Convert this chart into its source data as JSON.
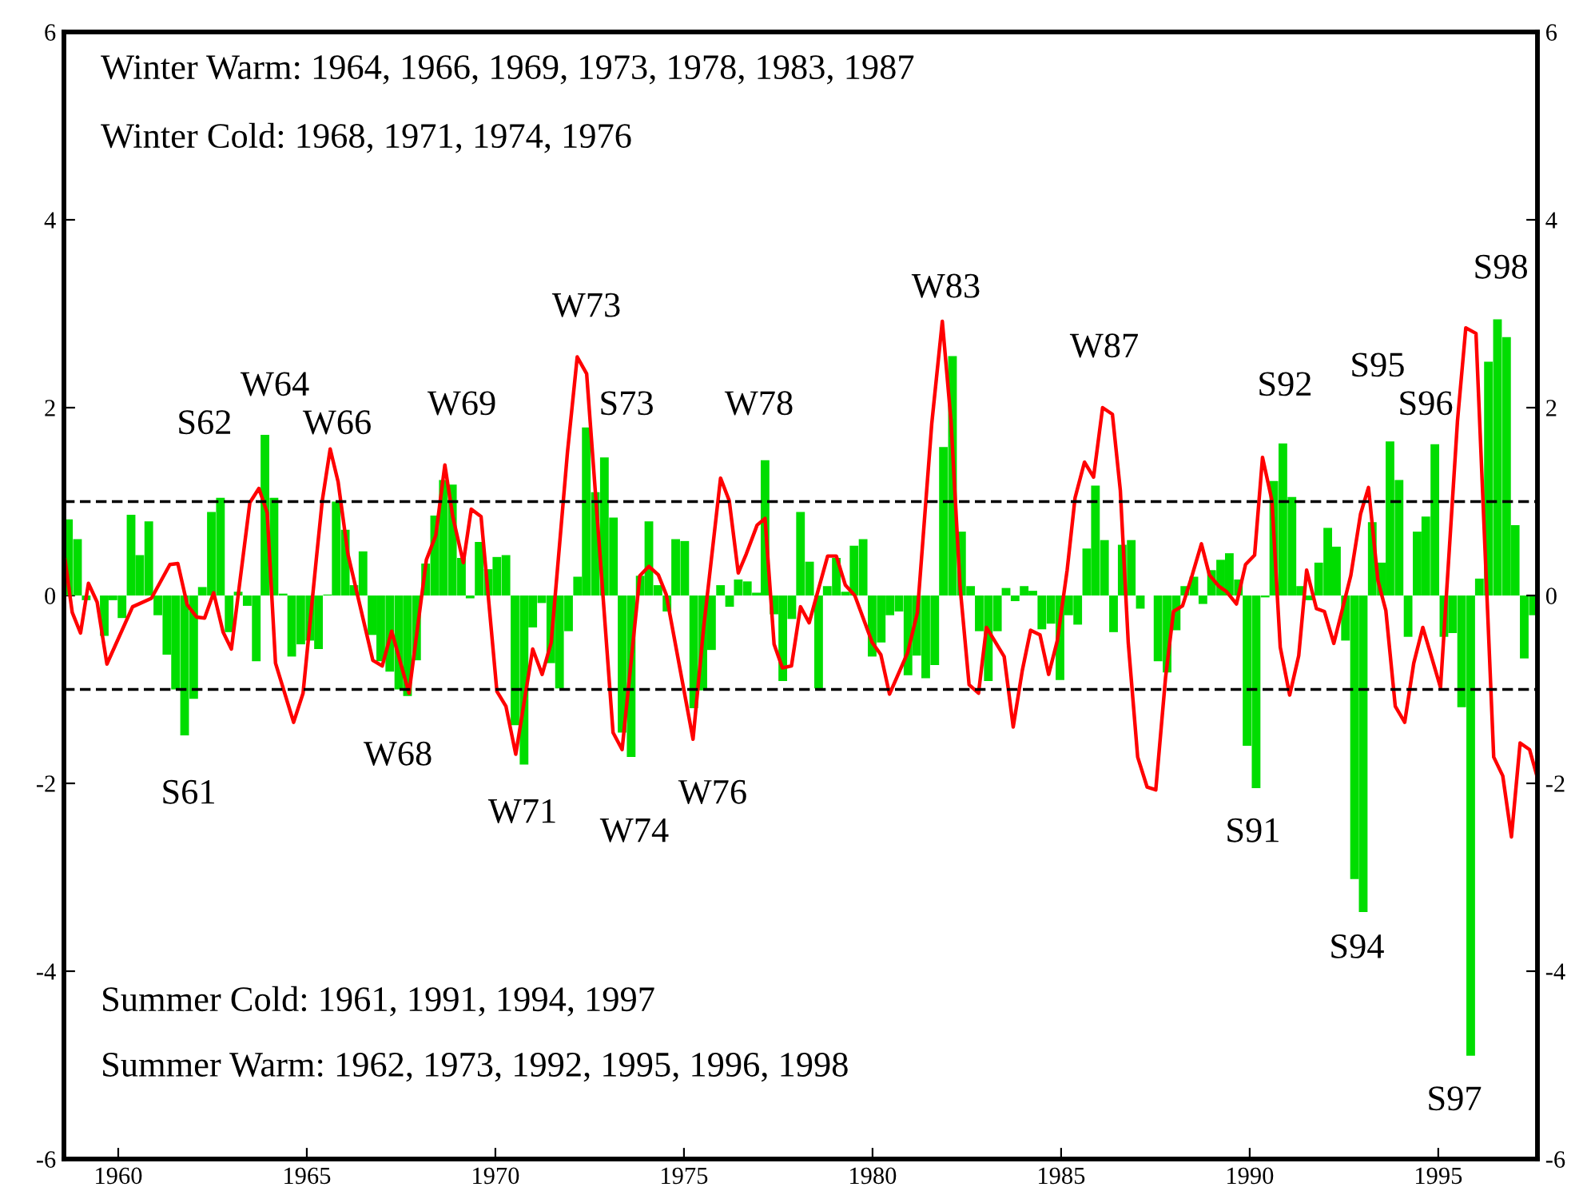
{
  "chart_data": {
    "type": "bar",
    "xlim": [
      1958.56,
      1997.63
    ],
    "xticks": [
      1960,
      1965,
      1970,
      1975,
      1980,
      1985,
      1990,
      1995
    ],
    "ylim": [
      -6,
      6
    ],
    "yticks": [
      -6,
      -4,
      -2,
      0,
      2,
      4,
      6
    ],
    "y2lim": [
      -6,
      6
    ],
    "y2ticks": [
      -6,
      -4,
      -2,
      0,
      2,
      4,
      6
    ],
    "grid": false,
    "series": [
      {
        "color": "#00dd00",
        "x": [
          1958.68,
          1958.92,
          1959.15,
          1959.39,
          1959.63,
          1959.86,
          1960.1,
          1960.34,
          1960.57,
          1960.81,
          1961.05,
          1961.29,
          1961.52,
          1961.76,
          1962.0,
          1962.23,
          1962.47,
          1962.71,
          1962.94,
          1963.18,
          1963.42,
          1963.66,
          1963.89,
          1964.13,
          1964.37,
          1964.6,
          1964.84,
          1965.08,
          1965.31,
          1965.55,
          1965.78,
          1966.02,
          1966.25,
          1966.49,
          1966.73,
          1966.96,
          1967.2,
          1967.44,
          1967.67,
          1967.91,
          1968.15,
          1968.39,
          1968.62,
          1968.86,
          1969.1,
          1969.33,
          1969.57,
          1969.81,
          1970.04,
          1970.28,
          1970.52,
          1970.76,
          1970.99,
          1971.23,
          1971.47,
          1971.7,
          1971.94,
          1972.18,
          1972.41,
          1972.65,
          1972.89,
          1973.13,
          1973.36,
          1973.6,
          1973.84,
          1974.07,
          1974.31,
          1974.55,
          1974.78,
          1975.02,
          1975.26,
          1975.5,
          1975.73,
          1975.97,
          1976.21,
          1976.44,
          1976.68,
          1976.92,
          1977.15,
          1977.39,
          1977.62,
          1977.86,
          1978.09,
          1978.33,
          1978.57,
          1978.8,
          1979.04,
          1979.28,
          1979.51,
          1979.75,
          1979.99,
          1980.23,
          1980.46,
          1980.7,
          1980.94,
          1981.17,
          1981.41,
          1981.65,
          1981.88,
          1982.12,
          1982.36,
          1982.6,
          1982.83,
          1983.07,
          1983.31,
          1983.54,
          1983.78,
          1984.02,
          1984.25,
          1984.49,
          1984.73,
          1984.97,
          1985.2,
          1985.44,
          1985.68,
          1985.91,
          1986.15,
          1986.39,
          1986.62,
          1986.86,
          1987.1,
          1987.34,
          1987.57,
          1987.81,
          1988.05,
          1988.28,
          1988.52,
          1988.76,
          1988.99,
          1989.23,
          1989.46,
          1989.7,
          1989.93,
          1990.17,
          1990.41,
          1990.64,
          1990.88,
          1991.12,
          1991.35,
          1991.59,
          1991.83,
          1992.07,
          1992.3,
          1992.54,
          1992.78,
          1993.01,
          1993.25,
          1993.49,
          1993.72,
          1993.96,
          1994.2,
          1994.44,
          1994.67,
          1994.91,
          1995.15,
          1995.38,
          1995.62,
          1995.86,
          1996.09,
          1996.33,
          1996.57,
          1996.81,
          1997.04,
          1997.28,
          1997.52
        ],
        "values": [
          0.81,
          0.6,
          -0.05,
          0,
          -0.43,
          -0.05,
          -0.24,
          0.86,
          0.43,
          0.79,
          -0.21,
          -0.63,
          -1.0,
          -1.49,
          -1.1,
          0.09,
          0.89,
          1.04,
          -0.39,
          0.04,
          -0.11,
          -0.7,
          1.71,
          1.04,
          0.02,
          -0.65,
          -0.52,
          -0.48,
          -0.57,
          0.01,
          1.0,
          0.7,
          0.11,
          0.47,
          -0.42,
          -0.7,
          -0.81,
          -1.0,
          -1.07,
          -0.69,
          0.34,
          0.85,
          1.23,
          1.18,
          0.4,
          -0.03,
          0.57,
          0.28,
          0.41,
          0.43,
          -1.38,
          -1.8,
          -0.34,
          -0.08,
          -0.72,
          -0.99,
          -0.38,
          0.2,
          1.79,
          1.1,
          1.47,
          0.83,
          -1.46,
          -1.72,
          0.21,
          0.79,
          0.11,
          -0.17,
          0.6,
          0.58,
          -1.2,
          -1.01,
          -0.58,
          0.11,
          -0.12,
          0.17,
          0.15,
          0.03,
          1.44,
          -0.2,
          -0.91,
          -0.25,
          0.89,
          0.36,
          -0.99,
          0.1,
          0.4,
          0.04,
          0.53,
          0.6,
          -0.65,
          -0.5,
          -0.21,
          -0.17,
          -0.85,
          -0.64,
          -0.88,
          -0.74,
          1.58,
          2.55,
          0.68,
          0.1,
          -0.38,
          -0.91,
          -0.38,
          0.08,
          -0.06,
          0.1,
          0.05,
          -0.36,
          -0.3,
          -0.9,
          -0.21,
          -0.31,
          0.5,
          1.17,
          0.59,
          -0.39,
          0.54,
          0.59,
          -0.14,
          0,
          -0.7,
          -0.82,
          -0.37,
          0.1,
          0.2,
          -0.09,
          0.27,
          0.38,
          0.45,
          0.17,
          -1.6,
          -2.05,
          -0.02,
          1.22,
          1.62,
          1.05,
          0.1,
          -0.05,
          0.35,
          0.72,
          0.52,
          -0.48,
          -3.02,
          -3.37,
          0.78,
          0.35,
          1.64,
          1.23,
          -0.44,
          0.68,
          0.84,
          1.61,
          -0.44,
          -0.4,
          -1.19,
          -4.9,
          0.18,
          2.49,
          2.94,
          2.75,
          0.75,
          -0.67,
          -0.21
        ]
      },
      {
        "type": "line",
        "color": "#ff0000",
        "x": [
          1958.59,
          1958.78,
          1959.0,
          1959.21,
          1959.44,
          1959.7,
          1960.38,
          1960.88,
          1961.37,
          1961.58,
          1961.83,
          1962.08,
          1962.29,
          1962.53,
          1962.78,
          1963.0,
          1963.49,
          1963.73,
          1963.95,
          1964.17,
          1964.65,
          1964.9,
          1965.25,
          1965.41,
          1965.62,
          1965.83,
          1966.09,
          1966.75,
          1967.0,
          1967.25,
          1967.71,
          1968.17,
          1968.42,
          1968.66,
          1968.87,
          1969.15,
          1969.36,
          1969.62,
          1970.04,
          1970.28,
          1970.54,
          1970.99,
          1971.24,
          1971.48,
          1971.91,
          1972.17,
          1972.42,
          1973.12,
          1973.36,
          1973.83,
          1974.07,
          1974.32,
          1974.53,
          1975.24,
          1975.52,
          1975.97,
          1976.2,
          1976.44,
          1976.65,
          1976.94,
          1977.15,
          1977.39,
          1977.61,
          1977.85,
          1978.09,
          1978.32,
          1978.81,
          1979.04,
          1979.28,
          1979.53,
          1979.99,
          1980.22,
          1980.45,
          1980.93,
          1981.19,
          1981.57,
          1981.85,
          1982.08,
          1982.32,
          1982.56,
          1982.81,
          1983.02,
          1983.49,
          1983.73,
          1983.97,
          1984.19,
          1984.44,
          1984.67,
          1984.9,
          1985.16,
          1985.37,
          1985.62,
          1985.86,
          1986.1,
          1986.36,
          1986.57,
          1986.78,
          1987.03,
          1987.28,
          1987.51,
          1987.77,
          1987.98,
          1988.22,
          1988.47,
          1988.72,
          1988.93,
          1989.18,
          1989.39,
          1989.65,
          1989.89,
          1990.13,
          1990.34,
          1990.59,
          1990.81,
          1991.06,
          1991.3,
          1991.51,
          1991.77,
          1991.98,
          1992.23,
          1992.68,
          1992.94,
          1993.15,
          1993.4,
          1993.61,
          1993.86,
          1994.11,
          1994.35,
          1994.59,
          1995.06,
          1995.51,
          1995.73,
          1996.0,
          1996.47,
          1996.71,
          1996.94,
          1997.17,
          1997.42,
          1997.63
        ],
        "values": [
          0.38,
          -0.18,
          -0.4,
          0.13,
          -0.07,
          -0.73,
          -0.12,
          -0.03,
          0.33,
          0.34,
          -0.1,
          -0.23,
          -0.24,
          0.03,
          -0.39,
          -0.57,
          0.99,
          1.14,
          0.88,
          -0.72,
          -1.35,
          -1.04,
          0.38,
          1.01,
          1.56,
          1.21,
          0.44,
          -0.69,
          -0.75,
          -0.38,
          -1.04,
          0.38,
          0.64,
          1.39,
          0.84,
          0.35,
          0.92,
          0.84,
          -1.02,
          -1.18,
          -1.69,
          -0.57,
          -0.84,
          -0.5,
          1.52,
          2.54,
          2.36,
          -1.46,
          -1.64,
          0.21,
          0.31,
          0.22,
          0.01,
          -1.53,
          -0.35,
          1.25,
          1.01,
          0.24,
          0.44,
          0.75,
          0.82,
          -0.52,
          -0.77,
          -0.75,
          -0.12,
          -0.29,
          0.42,
          0.42,
          0.11,
          0,
          -0.5,
          -0.63,
          -1.05,
          -0.61,
          -0.18,
          1.83,
          2.92,
          1.86,
          0.1,
          -0.95,
          -1.04,
          -0.34,
          -0.65,
          -1.4,
          -0.8,
          -0.37,
          -0.42,
          -0.84,
          -0.48,
          0.27,
          1.04,
          1.42,
          1.26,
          2.0,
          1.93,
          1.12,
          -0.5,
          -1.72,
          -2.04,
          -2.07,
          -0.87,
          -0.17,
          -0.11,
          0.21,
          0.55,
          0.22,
          0.1,
          0.04,
          -0.09,
          0.33,
          0.43,
          1.47,
          1.01,
          -0.55,
          -1.06,
          -0.64,
          0.27,
          -0.14,
          -0.17,
          -0.51,
          0.21,
          0.87,
          1.15,
          0.16,
          -0.16,
          -1.18,
          -1.35,
          -0.72,
          -0.34,
          -0.98,
          1.86,
          2.85,
          2.79,
          -1.72,
          -1.92,
          -2.57,
          -1.57,
          -1.64,
          -1.94
        ]
      }
    ],
    "ref_lines": [
      {
        "axis": "y",
        "value": 1,
        "color": "#000000",
        "line_style": "dashed"
      },
      {
        "axis": "y",
        "value": -1,
        "color": "#000000",
        "line_style": "dashed"
      }
    ],
    "annotations": [
      "Winter Warm: 1964, 1966, 1969, 1973, 1978, 1983, 1987",
      "Winter Cold: 1968, 1971, 1974, 1976",
      "Summer Cold: 1961, 1991, 1994, 1997",
      "Summer Warm: 1962, 1973, 1992, 1995, 1996, 1998",
      "S62",
      "W64",
      "W66",
      "W69",
      "W73",
      "S73",
      "W78",
      "W83",
      "W87",
      "S92",
      "S95",
      "S96",
      "S98",
      "S61",
      "W68",
      "W71",
      "W74",
      "W76",
      "S91",
      "S94",
      "S97"
    ]
  }
}
